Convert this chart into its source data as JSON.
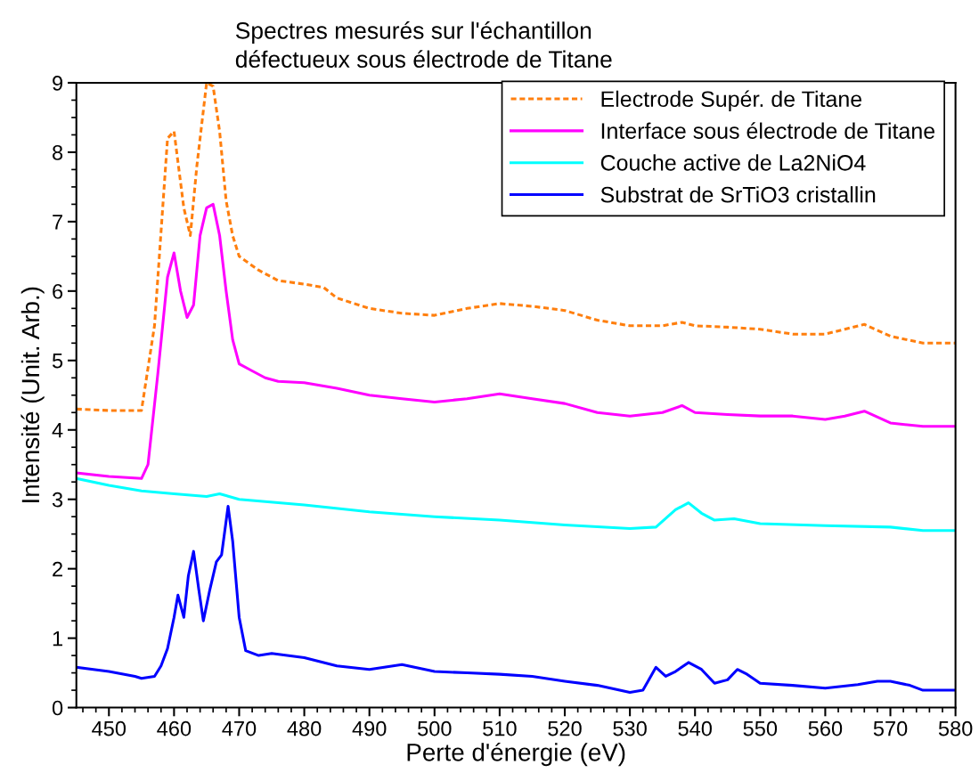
{
  "chart_data": {
    "type": "line",
    "title": "Spectres mesurés sur l'échantillon\ndéfectueux sous électrode de Titane",
    "xlabel": "Perte d'énergie (eV)",
    "ylabel": "Intensité (Unit. Arb.)",
    "xlim": [
      445,
      580
    ],
    "xticks": [
      450,
      460,
      470,
      480,
      490,
      500,
      510,
      520,
      530,
      540,
      550,
      560,
      570,
      580
    ],
    "ylim": [
      0,
      9
    ],
    "yticks": [
      0,
      1,
      2,
      3,
      4,
      5,
      6,
      7,
      8,
      9
    ],
    "grid": false,
    "legend": "top right",
    "marker": "none",
    "series": [
      {
        "name": "Electrode Supér. de Titane",
        "color": "#ff7f0e",
        "line_style": "dotted",
        "x": [
          445,
          450,
          455,
          457,
          459,
          460,
          461.5,
          462.5,
          463.5,
          465,
          466,
          467,
          468,
          469,
          470,
          473,
          476,
          480,
          483,
          485,
          490,
          495,
          500,
          505,
          510,
          515,
          520,
          525,
          530,
          535,
          538,
          540,
          545,
          550,
          555,
          560,
          563,
          566,
          570,
          575,
          580
        ],
        "values": [
          4.3,
          4.28,
          4.28,
          5.5,
          8.2,
          8.3,
          7.2,
          6.8,
          7.8,
          9.0,
          8.95,
          8.3,
          7.3,
          6.8,
          6.5,
          6.3,
          6.15,
          6.1,
          6.05,
          5.9,
          5.75,
          5.68,
          5.65,
          5.75,
          5.82,
          5.78,
          5.72,
          5.58,
          5.5,
          5.5,
          5.55,
          5.5,
          5.48,
          5.45,
          5.38,
          5.38,
          5.45,
          5.52,
          5.35,
          5.25,
          5.25
        ]
      },
      {
        "name": "Interface sous électrode de Titane",
        "color": "#ff00ff",
        "line_style": "solid",
        "x": [
          445,
          450,
          455,
          456,
          457.5,
          459,
          460,
          461,
          462,
          463,
          464,
          465,
          466,
          467,
          468,
          469,
          470,
          472,
          474,
          476,
          480,
          485,
          490,
          495,
          500,
          505,
          510,
          515,
          520,
          525,
          530,
          535,
          538,
          540,
          545,
          550,
          555,
          560,
          563,
          566,
          570,
          575,
          580
        ],
        "values": [
          3.38,
          3.33,
          3.3,
          3.5,
          4.8,
          6.2,
          6.55,
          6.0,
          5.62,
          5.8,
          6.8,
          7.2,
          7.25,
          6.8,
          6.0,
          5.3,
          4.95,
          4.85,
          4.75,
          4.7,
          4.68,
          4.6,
          4.5,
          4.45,
          4.4,
          4.45,
          4.52,
          4.45,
          4.38,
          4.25,
          4.2,
          4.25,
          4.35,
          4.25,
          4.22,
          4.2,
          4.2,
          4.15,
          4.2,
          4.27,
          4.1,
          4.05,
          4.05
        ]
      },
      {
        "name": "Couche active de La2NiO4",
        "color": "#00ffff",
        "line_style": "solid",
        "x": [
          445,
          450,
          455,
          460,
          465,
          467,
          470,
          480,
          490,
          500,
          510,
          520,
          530,
          534,
          537,
          539,
          541,
          543,
          546,
          550,
          560,
          570,
          575,
          580
        ],
        "values": [
          3.3,
          3.2,
          3.12,
          3.08,
          3.04,
          3.08,
          3.0,
          2.92,
          2.82,
          2.75,
          2.7,
          2.63,
          2.58,
          2.6,
          2.85,
          2.95,
          2.8,
          2.7,
          2.72,
          2.65,
          2.62,
          2.6,
          2.55,
          2.55
        ]
      },
      {
        "name": "Substrat de SrTiO3 cristallin",
        "color": "#0000ff",
        "line_style": "solid",
        "x": [
          445,
          450,
          454,
          455,
          457,
          458,
          459,
          460,
          460.6,
          461.5,
          462.2,
          463,
          463.8,
          464.5,
          465.5,
          466.5,
          467.3,
          468.3,
          469,
          470,
          471,
          473,
          475,
          480,
          485,
          490,
          495,
          500,
          505,
          510,
          515,
          520,
          525,
          530,
          532,
          534,
          535.5,
          537,
          539,
          541,
          543,
          545,
          546.5,
          548,
          550,
          555,
          560,
          565,
          568,
          570,
          573,
          575,
          580
        ],
        "values": [
          0.58,
          0.52,
          0.45,
          0.42,
          0.45,
          0.6,
          0.85,
          1.3,
          1.62,
          1.3,
          1.9,
          2.25,
          1.7,
          1.25,
          1.7,
          2.1,
          2.2,
          2.9,
          2.4,
          1.3,
          0.82,
          0.75,
          0.78,
          0.72,
          0.6,
          0.55,
          0.62,
          0.52,
          0.5,
          0.48,
          0.45,
          0.38,
          0.32,
          0.22,
          0.25,
          0.58,
          0.45,
          0.52,
          0.65,
          0.55,
          0.35,
          0.4,
          0.55,
          0.48,
          0.35,
          0.32,
          0.28,
          0.33,
          0.38,
          0.38,
          0.32,
          0.25,
          0.25
        ]
      }
    ]
  }
}
